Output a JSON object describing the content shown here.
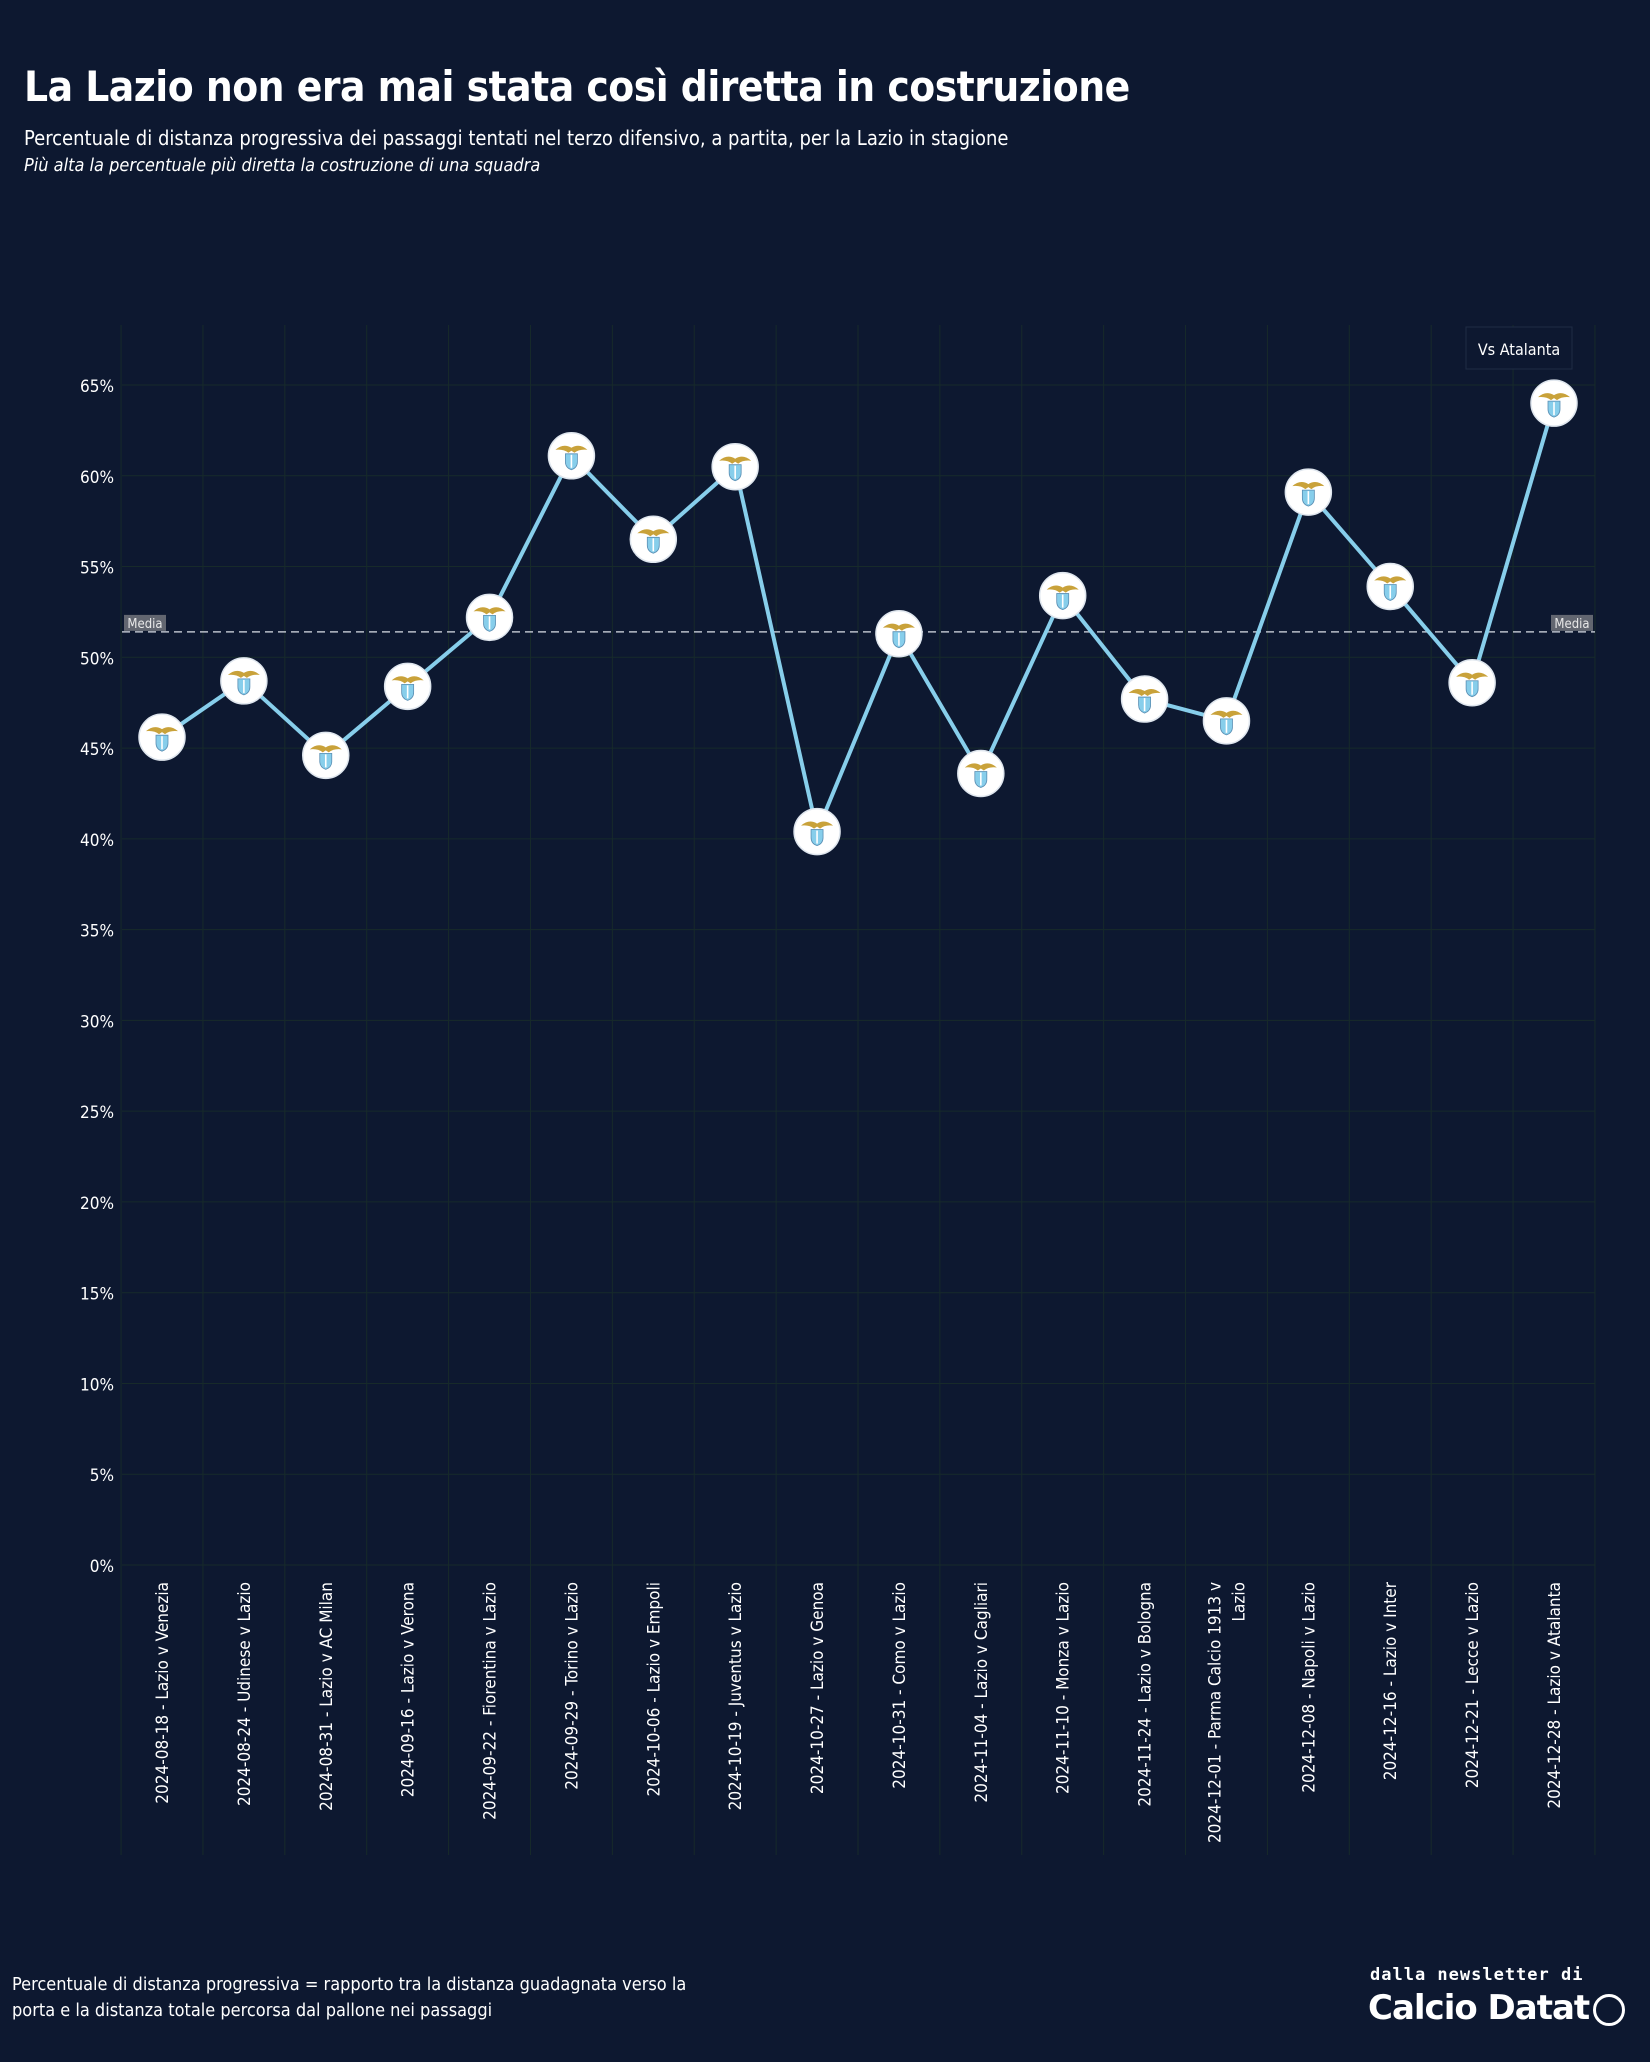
{
  "title": "La Lazio non era mai stata così diretta in costruzione",
  "subtitle": "Percentuale di distanza progressiva dei passaggi tentati nel terzo difensivo, a partita, per la Lazio in stagione",
  "note": "Più alta la percentuale più diretta la costruzione di una squadra",
  "footer": {
    "definition": "Percentuale di distanza progressiva = rapporto tra la distanza guadagnata verso la porta e la distanza totale percorsa dal pallone nei passaggi",
    "brand_small": "dalla newsletter di",
    "brand_name": "Calcio Datat"
  },
  "colors": {
    "background": "#0d1830",
    "line": "#87ceeb",
    "mean_line": "#b9bec9",
    "grid": "#172a2a",
    "marker_fill": "#ffffff",
    "crest_eagle": "#c9a23a",
    "crest_shield": "#87ceeb"
  },
  "chart_data": {
    "type": "line",
    "x": [
      "2024-08-18 - Lazio v Venezia",
      "2024-08-24 - Udinese v Lazio",
      "2024-08-31 - Lazio v AC Milan",
      "2024-09-16 - Lazio v Verona",
      "2024-09-22 - Fiorentina v Lazio",
      "2024-09-29 - Torino v Lazio",
      "2024-10-06 - Lazio v Empoli",
      "2024-10-19 - Juventus v Lazio",
      "2024-10-27 - Lazio v Genoa",
      "2024-10-31 - Como v Lazio",
      "2024-11-04 - Lazio v Cagliari",
      "2024-11-10 - Monza v Lazio",
      "2024-11-24 - Lazio v Bologna",
      "2024-12-01 - Parma Calcio 1913 v Lazio",
      "2024-12-08 - Napoli v Lazio",
      "2024-12-16 - Lazio v Inter",
      "2024-12-21 - Lecce v Lazio",
      "2024-12-28 - Lazio v Atalanta"
    ],
    "series": [
      {
        "values": [
          45.6,
          48.7,
          44.6,
          48.4,
          52.2,
          61.1,
          56.5,
          60.5,
          40.4,
          51.3,
          43.6,
          53.4,
          47.7,
          46.5,
          59.1,
          53.9,
          48.6,
          64.0
        ]
      }
    ],
    "mean": 51.4,
    "mean_label": "Media",
    "ylim": [
      0,
      68
    ],
    "yticks": [
      0,
      5,
      10,
      15,
      20,
      25,
      30,
      35,
      40,
      45,
      50,
      55,
      60,
      65
    ],
    "ytick_labels": [
      "0%",
      "5%",
      "10%",
      "15%",
      "20%",
      "25%",
      "30%",
      "35%",
      "40%",
      "45%",
      "50%",
      "55%",
      "60%",
      "65%"
    ],
    "annotation": {
      "text": "Vs Atalanta",
      "point_index": 17
    },
    "grid": true,
    "legend": "none"
  }
}
